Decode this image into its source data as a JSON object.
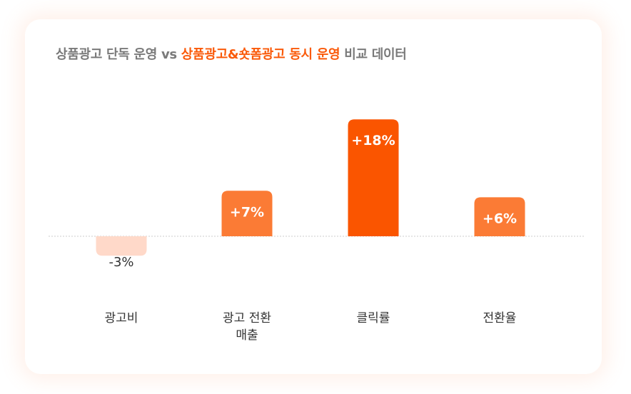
{
  "title": {
    "prefix": "상품광고 단독 운영 vs ",
    "highlight": "상품광고&숏폼광고 동시 운영",
    "suffix": " 비교 데이터"
  },
  "colors": {
    "accent": "#fa5a0a",
    "bar_positive": "#fb7b35",
    "bar_highlight": "#fa5500",
    "bar_negative": "#ffd9c9",
    "title_gray": "#7a7a7a",
    "baseline": "#cccccc"
  },
  "chart_data": {
    "type": "bar",
    "title": "상품광고 단독 운영 vs 상품광고&숏폼광고 동시 운영 비교 데이터",
    "categories": [
      "광고비",
      "광고 전환\n매출",
      "클릭률",
      "전환율"
    ],
    "values": [
      -3,
      7,
      18,
      6
    ],
    "data_labels": [
      "-3%",
      "+7%",
      "+18%",
      "+6%"
    ],
    "unit": "%",
    "highlighted_category": "클릭률",
    "baseline": 0,
    "grid": false,
    "legend": "none",
    "xlabel": "",
    "ylabel": ""
  }
}
